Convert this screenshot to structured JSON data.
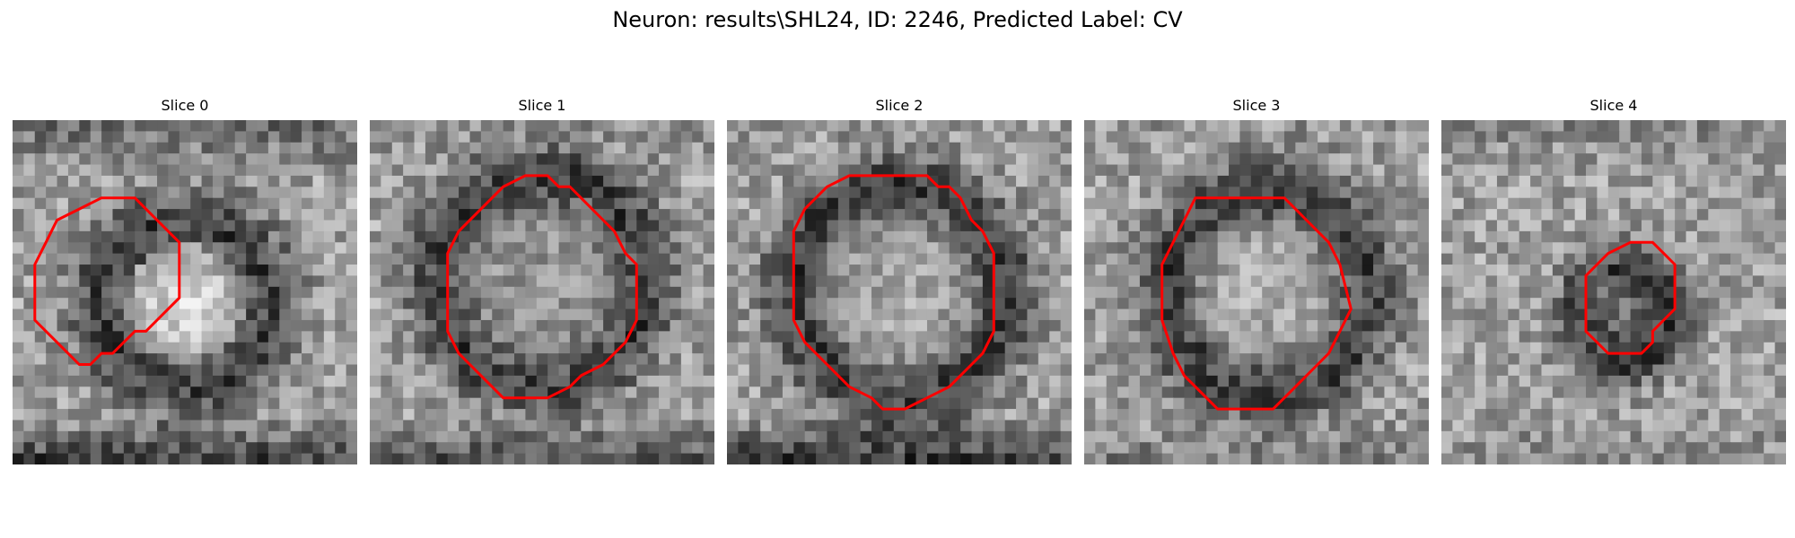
{
  "figure": {
    "title": "Neuron: results\\SHL24, ID: 2246, Predicted Label: CV",
    "contour_color": "#ff0000"
  },
  "slices": [
    {
      "label": "Slice 0"
    },
    {
      "label": "Slice 1"
    },
    {
      "label": "Slice 2"
    },
    {
      "label": "Slice 3"
    },
    {
      "label": "Slice 4"
    }
  ]
}
